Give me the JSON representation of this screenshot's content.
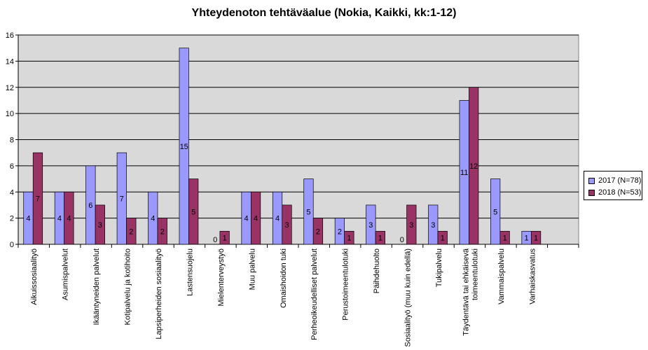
{
  "chart_data": {
    "type": "bar",
    "title": "Yhteydenoton tehtäväalue (Nokia, Kaikki, kk:1-12)",
    "xlabel": "",
    "ylabel": "",
    "ylim": [
      0,
      16
    ],
    "yticks": [
      0,
      2,
      4,
      6,
      8,
      10,
      12,
      14,
      16
    ],
    "grid": true,
    "legend_position": "right",
    "plot_background": "#d9d9d9",
    "categories": [
      "Aikuissosiaalityö",
      "Asumispalvelut",
      "Ikääntyneiden palvelut",
      "Kotipalvelu ja kotihoito",
      "Lapsiperheiden sosiaalityö",
      "Lastensuojelu",
      "Mielenterveystyö",
      "Muu palvelu",
      "Omaishoidon tuki",
      "Perheoikeudelliset palvelut",
      "Perustoimeentulotuki",
      "Päihdehuolto",
      "Sosiaalityö (muu kuin edellä)",
      "Tukipalvelu",
      [
        "Täydentävä tai ehkäisevä",
        "toimeentulotuki"
      ],
      "Vammaispalvelu",
      "Varhaiskasvatus"
    ],
    "series": [
      {
        "name": "2017 (N=78)",
        "color": "#9999ff",
        "values": [
          4,
          4,
          6,
          7,
          4,
          15,
          0,
          4,
          4,
          5,
          2,
          3,
          0,
          3,
          11,
          5,
          1
        ]
      },
      {
        "name": "2018 (N=53)",
        "color": "#993366",
        "values": [
          7,
          4,
          3,
          2,
          2,
          5,
          1,
          4,
          3,
          2,
          1,
          1,
          3,
          1,
          12,
          1,
          1
        ]
      }
    ]
  }
}
